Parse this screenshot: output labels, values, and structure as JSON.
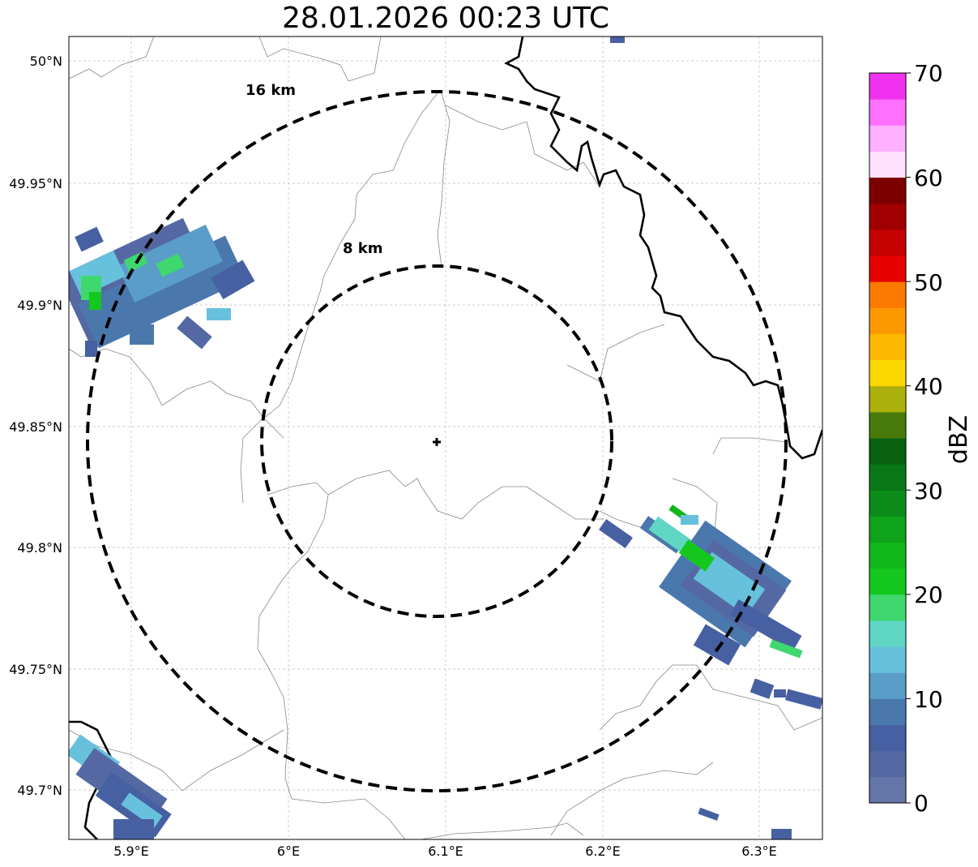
{
  "title": "28.01.2026 00:23 UTC",
  "map": {
    "lon_range": [
      5.86,
      6.34
    ],
    "lat_range": [
      49.68,
      50.01
    ],
    "center": {
      "lon": 6.095,
      "lat": 49.843
    },
    "lon_ticks": [
      {
        "value": 5.9,
        "label": "5.9°E"
      },
      {
        "value": 6.0,
        "label": "6°E"
      },
      {
        "value": 6.1,
        "label": "6.1°E"
      },
      {
        "value": 6.2,
        "label": "6.2°E"
      },
      {
        "value": 6.3,
        "label": "6.3°E"
      }
    ],
    "lat_ticks": [
      {
        "value": 50.0,
        "label": "50°N"
      },
      {
        "value": 49.95,
        "label": "49.95°N"
      },
      {
        "value": 49.9,
        "label": "49.9°N"
      },
      {
        "value": 49.85,
        "label": "49.85°N"
      },
      {
        "value": 49.8,
        "label": "49.8°N"
      },
      {
        "value": 49.75,
        "label": "49.75°N"
      },
      {
        "value": 49.7,
        "label": "49.7°N"
      }
    ],
    "rings": [
      {
        "radius_km": 8,
        "label": "8 km"
      },
      {
        "radius_km": 16,
        "label": "16 km"
      }
    ],
    "grid": true
  },
  "colorbar": {
    "label": "dBZ",
    "min": 0,
    "max": 70,
    "ticks": [
      "0",
      "10",
      "20",
      "30",
      "40",
      "50",
      "60",
      "70"
    ],
    "colors": [
      "#6476aa",
      "#5469a3",
      "#4660a2",
      "#4a78ad",
      "#5a9dc8",
      "#67c1dc",
      "#60d6c4",
      "#3ed86e",
      "#14c81e",
      "#10b71a",
      "#0ea31a",
      "#0b8c18",
      "#0a7716",
      "#08620f",
      "#477a0b",
      "#acb00c",
      "#fcd700",
      "#fdb800",
      "#fd9900",
      "#fd7a00",
      "#e60000",
      "#c50000",
      "#a10000",
      "#7d0000",
      "#ffe0ff",
      "#ffb0ff",
      "#ff70ff",
      "#f032f0"
    ]
  },
  "echo_legend": {
    "light": "#5469a3",
    "medium": "#4a78ad",
    "cyan": "#67c1dc",
    "green": "#3ed86e",
    "bright_green": "#14c81e"
  }
}
